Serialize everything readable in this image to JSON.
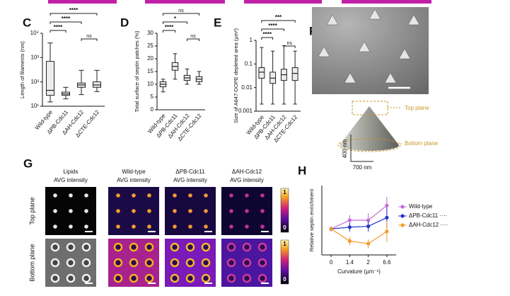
{
  "panel_labels": {
    "c": "C",
    "d": "D",
    "e": "E",
    "f": "F",
    "g": "G",
    "h": "H"
  },
  "chart_data": [
    {
      "type": "box",
      "ylabel": "Length of filaments (nm)",
      "log": true,
      "categories": [
        "Wild-type",
        "ΔPB-Cdc11",
        "ΔAH-Cdc12",
        "ΔCTE-Cdc12"
      ],
      "boxes": [
        {
          "min": 15,
          "q1": 28,
          "median": 45,
          "q3": 700,
          "max": 4000
        },
        {
          "min": 20,
          "q1": 28,
          "median": 32,
          "q3": 38,
          "max": 60
        },
        {
          "min": 30,
          "q1": 60,
          "median": 75,
          "q3": 90,
          "max": 300
        },
        {
          "min": 40,
          "q1": 60,
          "median": 75,
          "q3": 100,
          "max": 300
        }
      ],
      "ylim": [
        10,
        10000
      ],
      "yticks": [
        {
          "value": 10,
          "label": "10¹"
        },
        {
          "value": 100,
          "label": "10²"
        },
        {
          "value": 1000,
          "label": "10³"
        },
        {
          "value": 10000,
          "label": "10⁴"
        }
      ],
      "annotations": [
        {
          "text": "****",
          "pair": [
            0,
            3
          ]
        },
        {
          "text": "****",
          "pair": [
            0,
            2
          ]
        },
        {
          "text": "****",
          "pair": [
            0,
            1
          ]
        },
        {
          "text": "ns",
          "pair": [
            2,
            3
          ]
        }
      ]
    },
    {
      "type": "box",
      "ylabel": "Total surface of septin patches (%)",
      "log": false,
      "categories": [
        "Wild-type",
        "ΔPB-Cdc11",
        "ΔAH-Cdc12",
        "ΔCTE-Cdc12"
      ],
      "boxes": [
        {
          "min": 7,
          "q1": 9,
          "median": 10,
          "q3": 11,
          "max": 12
        },
        {
          "min": 12,
          "q1": 15.5,
          "median": 17,
          "q3": 18.5,
          "max": 22
        },
        {
          "min": 10,
          "q1": 11.5,
          "median": 12.5,
          "q3": 13.5,
          "max": 16
        },
        {
          "min": 10,
          "q1": 11,
          "median": 12,
          "q3": 13,
          "max": 15
        }
      ],
      "ylim": [
        0,
        30
      ],
      "yticks": [
        0,
        5,
        10,
        15,
        20,
        25,
        30
      ],
      "annotations": [
        {
          "text": "ns",
          "pair": [
            0,
            3
          ]
        },
        {
          "text": "*",
          "pair": [
            0,
            2
          ]
        },
        {
          "text": "****",
          "pair": [
            0,
            1
          ]
        },
        {
          "text": "ns",
          "pair": [
            2,
            3
          ]
        }
      ]
    },
    {
      "type": "box",
      "ylabel": "Size of A647-DOPE depleted area (µm²)",
      "log": true,
      "categories": [
        "Wild-type",
        "ΔPB-Cdc11",
        "ΔAH-Cdc12",
        "ΔCTE-Cdc12"
      ],
      "boxes": [
        {
          "min": 0.002,
          "q1": 0.025,
          "median": 0.045,
          "q3": 0.07,
          "max": 0.5
        },
        {
          "min": 0.002,
          "q1": 0.015,
          "median": 0.025,
          "q3": 0.045,
          "max": 0.35
        },
        {
          "min": 0.002,
          "q1": 0.02,
          "median": 0.035,
          "q3": 0.06,
          "max": 0.6
        },
        {
          "min": 0.002,
          "q1": 0.02,
          "median": 0.04,
          "q3": 0.07,
          "max": 0.35
        }
      ],
      "ylim": [
        0.001,
        1
      ],
      "yticks": [
        0.001,
        0.01,
        0.1,
        1
      ],
      "annotations": [
        {
          "text": "***",
          "pair": [
            0,
            3
          ]
        },
        {
          "text": "****",
          "pair": [
            0,
            2
          ]
        },
        {
          "text": "****",
          "pair": [
            0,
            1
          ]
        },
        {
          "text": "ns",
          "pair": [
            2,
            3
          ]
        }
      ]
    },
    {
      "type": "line",
      "ylabel": "Relative septin enrichment",
      "xlabel": "Curvature (µm⁻¹)",
      "categories": [
        "0",
        "1.4",
        "2",
        "6.6"
      ],
      "ylim": [
        0.7,
        1.5
      ],
      "series": [
        {
          "name": "Wild-type",
          "color": "#c36bd8",
          "values": [
            1.0,
            1.1,
            1.1,
            1.27
          ],
          "errors": [
            0.03,
            0.06,
            0.08,
            0.1
          ]
        },
        {
          "name": "ΔPB-Cdc11 ····",
          "color": "#2233cc",
          "values": [
            1.0,
            1.02,
            1.03,
            1.13
          ],
          "errors": [
            0.02,
            0.05,
            0.06,
            0.12
          ]
        },
        {
          "name": "ΔAH-Cdc12 ····",
          "color": "#f39a2b",
          "values": [
            1.0,
            0.86,
            0.83,
            0.97
          ],
          "errors": [
            0.02,
            0.05,
            0.05,
            0.12
          ]
        }
      ]
    }
  ],
  "panel_f": {
    "top_plane": "Top plane",
    "bottom_plane": "Bottom plane",
    "height": "400 nm",
    "width": "700 nm"
  },
  "panel_g": {
    "columns": [
      [
        "Lipids",
        "AVG intensity"
      ],
      [
        "Wild-type",
        "AVG intensity"
      ],
      [
        "ΔPB-Cdc11",
        "AVG intensity"
      ],
      [
        "ΔAH-Cdc12",
        "AVG intensity"
      ]
    ],
    "rows": [
      "Top plane",
      "Bottom plane"
    ],
    "colorbar_max": 1,
    "colorbar_min": 0
  }
}
